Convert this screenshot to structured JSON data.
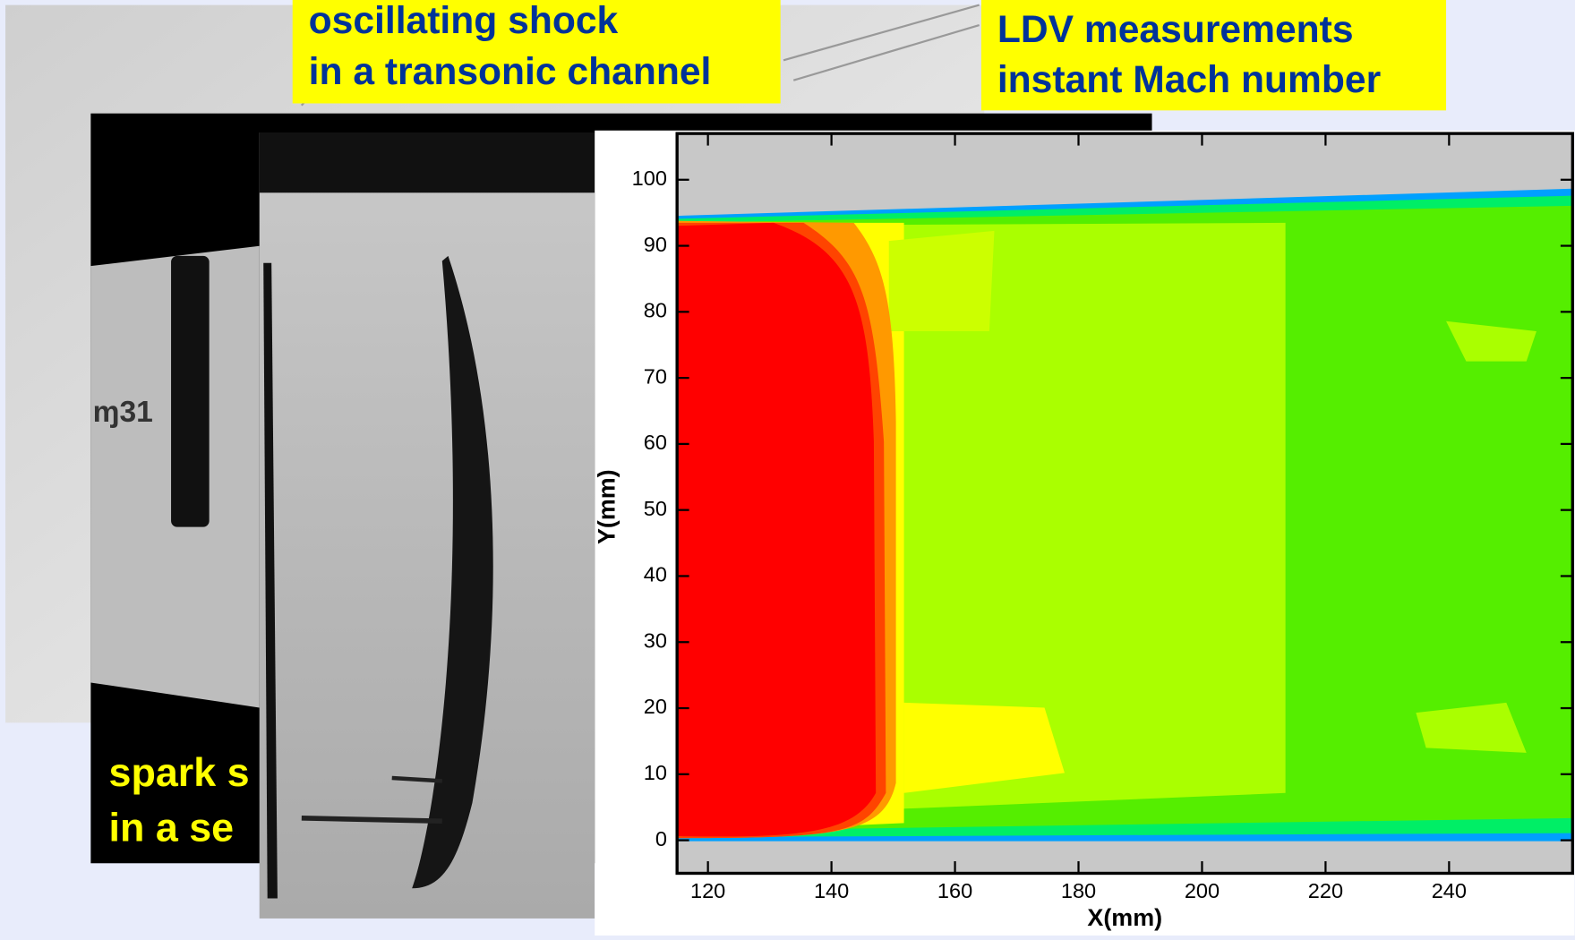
{
  "captions": {
    "shock": [
      "oscillating shock",
      "in a transonic channel"
    ],
    "ldv": [
      "LDV measurements",
      "instant Mach number"
    ],
    "spark": [
      "spark s",
      "in a se"
    ]
  },
  "chart_data": {
    "type": "contour",
    "xlabel": "X(mm)",
    "ylabel": "Y(mm)",
    "xlim": [
      115,
      260
    ],
    "ylim": [
      -5,
      107
    ],
    "xticks": [
      120,
      140,
      160,
      180,
      200,
      220,
      240
    ],
    "yticks": [
      0,
      10,
      20,
      30,
      40,
      50,
      60,
      70,
      80,
      90,
      100
    ]
  }
}
